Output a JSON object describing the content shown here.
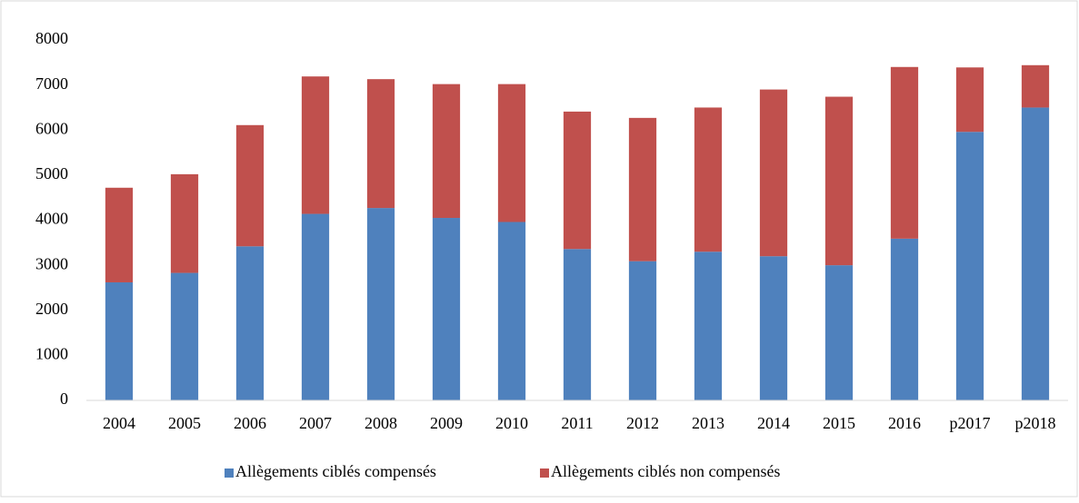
{
  "chart_data": {
    "type": "stacked_bar",
    "categories": [
      "2004",
      "2005",
      "2006",
      "2007",
      "2008",
      "2009",
      "2010",
      "2011",
      "2012",
      "2013",
      "2014",
      "2015",
      "2016",
      "p2017",
      "p2018"
    ],
    "series": [
      {
        "name": "Allègements ciblés compensés",
        "color": "#4f81bd",
        "values": [
          2620,
          2830,
          3420,
          4140,
          4270,
          4050,
          3960,
          3360,
          3090,
          3300,
          3200,
          3000,
          3590,
          5960,
          6500
        ]
      },
      {
        "name": "Allègements ciblés non compensés",
        "color": "#c0504d",
        "values": [
          2100,
          2190,
          2690,
          3050,
          2860,
          2970,
          3060,
          3050,
          3180,
          3200,
          3700,
          3740,
          3810,
          1430,
          940
        ]
      }
    ],
    "ylim": [
      0,
      8000
    ],
    "yticks": [
      0,
      1000,
      2000,
      3000,
      4000,
      5000,
      6000,
      7000,
      8000
    ],
    "grid": false,
    "legend": "bottom"
  }
}
